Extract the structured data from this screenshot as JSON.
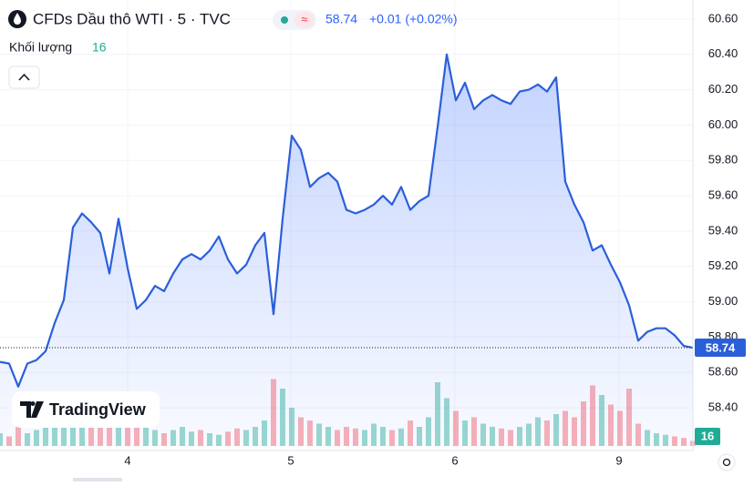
{
  "header": {
    "title": "CFDs Dầu thô WTI · 5 · TVC",
    "price": "58.74",
    "change": "+0.01 (+0.02%)",
    "volume_label": "Khối lượng",
    "volume": "16"
  },
  "brand": "TradingView",
  "chart_data": {
    "type": "area",
    "x": [
      0,
      1,
      2,
      3,
      4,
      5,
      6,
      7,
      8,
      9,
      10,
      11,
      12,
      13,
      14,
      15,
      16,
      17,
      18,
      19,
      20,
      21,
      22,
      23,
      24,
      25,
      26,
      27,
      28,
      29,
      30,
      31,
      32,
      33,
      34,
      35,
      36,
      37,
      38,
      39,
      40,
      41,
      42,
      43,
      44,
      45,
      46,
      47,
      48,
      49,
      50,
      51,
      52,
      53,
      54,
      55,
      56,
      57,
      58,
      59,
      60,
      61,
      62,
      63,
      64,
      65,
      66,
      67,
      68,
      69,
      70,
      71,
      72,
      73,
      74,
      75,
      76
    ],
    "series": [
      {
        "color": "#2b5fd9",
        "values": [
          58.66,
          58.65,
          58.52,
          58.65,
          58.67,
          58.72,
          58.88,
          59.01,
          59.42,
          59.5,
          59.45,
          59.39,
          59.16,
          59.47,
          59.19,
          58.96,
          59.01,
          59.09,
          59.06,
          59.16,
          59.24,
          59.27,
          59.24,
          59.29,
          59.37,
          59.24,
          59.16,
          59.21,
          59.32,
          59.39,
          58.93,
          59.47,
          59.94,
          59.86,
          59.65,
          59.7,
          59.73,
          59.68,
          59.52,
          59.5,
          59.52,
          59.55,
          59.6,
          59.55,
          59.65,
          59.52,
          59.57,
          59.6,
          59.99,
          60.4,
          60.14,
          60.24,
          60.09,
          60.14,
          60.17,
          60.14,
          60.12,
          60.19,
          60.2,
          60.23,
          60.19,
          60.27,
          59.68,
          59.55,
          59.45,
          59.29,
          59.32,
          59.21,
          59.11,
          58.98,
          58.78,
          58.83,
          58.85,
          58.85,
          58.81,
          58.75,
          58.74
        ]
      }
    ],
    "volume": {
      "up_color": "#22ab94",
      "down_color": "#f7525f",
      "ylim": [
        0,
        400
      ],
      "values": [
        40,
        30,
        60,
        40,
        50,
        80,
        60,
        70,
        90,
        100,
        80,
        90,
        60,
        130,
        70,
        110,
        60,
        50,
        40,
        50,
        60,
        45,
        50,
        40,
        35,
        45,
        55,
        50,
        60,
        80,
        210,
        180,
        120,
        90,
        80,
        70,
        60,
        50,
        60,
        55,
        50,
        70,
        60,
        50,
        55,
        80,
        60,
        90,
        200,
        150,
        110,
        80,
        90,
        70,
        60,
        55,
        50,
        60,
        70,
        90,
        80,
        100,
        110,
        90,
        140,
        190,
        160,
        130,
        110,
        180,
        70,
        50,
        40,
        35,
        30,
        25,
        16
      ]
    },
    "xlim": [
      0,
      76
    ],
    "xticks": [
      {
        "value": 14,
        "label": "4"
      },
      {
        "value": 31.9,
        "label": "5"
      },
      {
        "value": 49.9,
        "label": "6"
      },
      {
        "value": 67.9,
        "label": "9"
      }
    ],
    "ylim": [
      58.184,
      60.708
    ],
    "yticks": [
      {
        "value": 60.6,
        "label": "60.60"
      },
      {
        "value": 60.4,
        "label": "60.40"
      },
      {
        "value": 60.2,
        "label": "60.20"
      },
      {
        "value": 60.0,
        "label": "60.00"
      },
      {
        "value": 59.8,
        "label": "59.80"
      },
      {
        "value": 59.6,
        "label": "59.60"
      },
      {
        "value": 59.4,
        "label": "59.40"
      },
      {
        "value": 59.2,
        "label": "59.20"
      },
      {
        "value": 59.0,
        "label": "59.00"
      },
      {
        "value": 58.8,
        "label": "58.80"
      },
      {
        "value": 58.6,
        "label": "58.60"
      },
      {
        "value": 58.4,
        "label": "58.40"
      }
    ],
    "grid": true
  }
}
